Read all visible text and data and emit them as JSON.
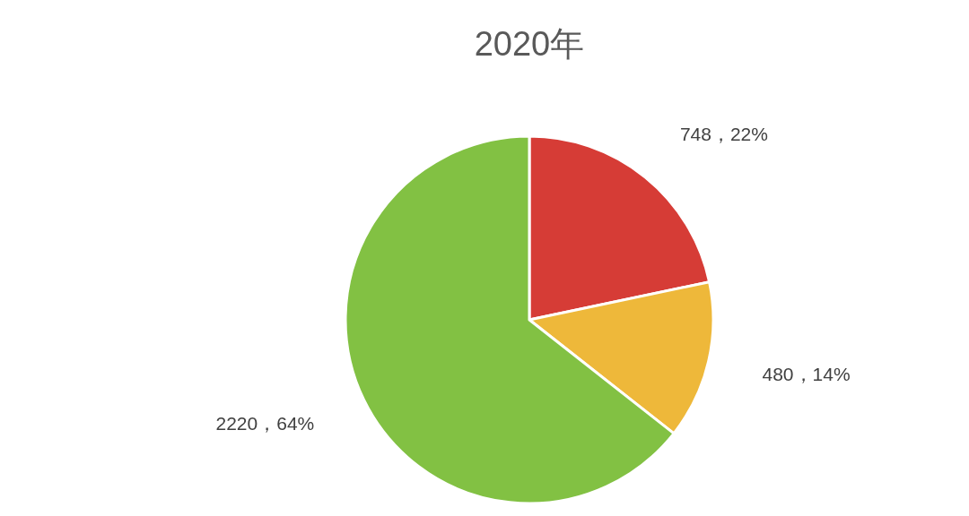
{
  "chart_data": {
    "type": "pie",
    "title": "2020年",
    "categories": [
      null,
      null,
      null
    ],
    "values": [
      748,
      480,
      2220
    ],
    "colors": [
      "#d63c36",
      "#eeb83a",
      "#82c143"
    ],
    "value_labels": [
      "748，22%",
      "480，14%",
      "2220，64%"
    ]
  }
}
